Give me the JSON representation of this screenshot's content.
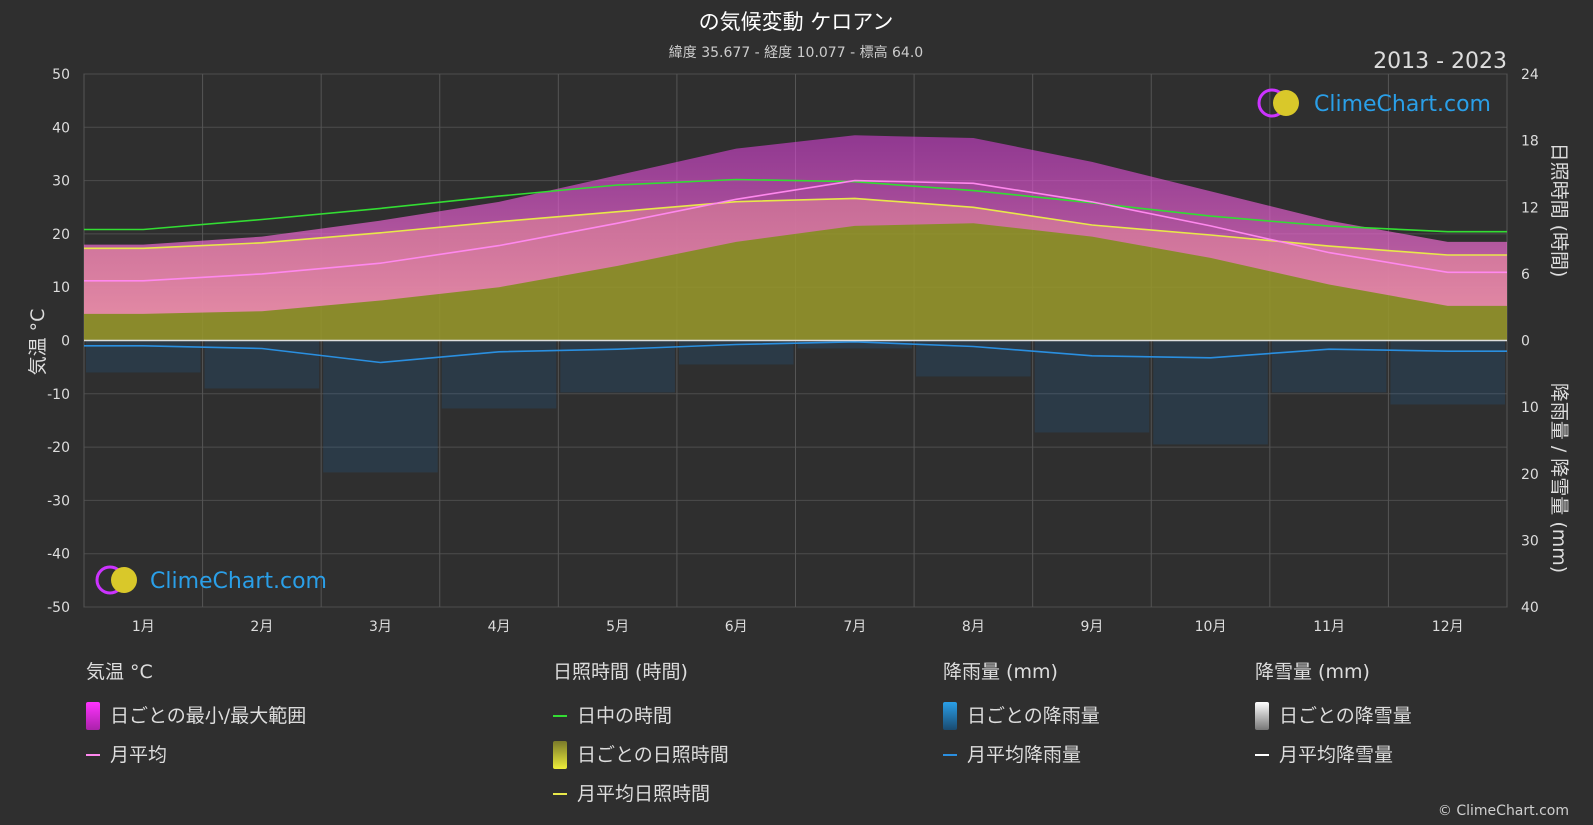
{
  "header": {
    "title": "の気候変動 ケロアン",
    "subtitle": "緯度 35.677 - 経度 10.077 - 標高 64.0",
    "period": "2013 - 2023"
  },
  "logo": {
    "text": "ClimeChart.com"
  },
  "copyright": "© ClimeChart.com",
  "legend": {
    "temperature": {
      "heading": "気温 °C",
      "daily_range": "日ごとの最小/最大範囲",
      "monthly_avg": "月平均"
    },
    "sunshine": {
      "heading": "日照時間 (時間)",
      "daylight": "日中の時間",
      "daily_sunshine": "日ごとの日照時間",
      "monthly_avg_sunshine": "月平均日照時間"
    },
    "rain": {
      "heading": "降雨量 (mm)",
      "daily_rain": "日ごとの降雨量",
      "monthly_avg_rain": "月平均降雨量"
    },
    "snow": {
      "heading": "降雪量 (mm)",
      "daily_snow": "日ごとの降雪量",
      "monthly_avg_snow": "月平均降雪量"
    }
  },
  "colors": {
    "background": "#2f2f2f",
    "temp_range": "#d63fd6",
    "temp_avg": "#ff88ee",
    "daylight": "#33dd33",
    "sunshine_fill": "#9a9a2a",
    "sunshine_line": "#e8e84a",
    "rain": "#1a6fb5",
    "rain_line": "#2a8fe0",
    "snow": "#ffffff",
    "logo_text": "#2a9fe8"
  },
  "chart_data": {
    "type": "area",
    "categories": [
      "1月",
      "2月",
      "3月",
      "4月",
      "5月",
      "6月",
      "7月",
      "8月",
      "9月",
      "10月",
      "11月",
      "12月"
    ],
    "y_left": {
      "label": "気温 °C",
      "ylim": [
        -50,
        50
      ],
      "ticks": [
        50,
        40,
        30,
        20,
        10,
        0,
        -10,
        -20,
        -30,
        -40,
        -50
      ]
    },
    "y_right_top": {
      "label": "日照時間 (時間)",
      "ylim": [
        0,
        24
      ],
      "ticks": [
        24,
        18,
        12,
        6,
        0
      ]
    },
    "y_right_bottom": {
      "label": "降雨量 / 降雪量 (mm)",
      "ylim": [
        0,
        40
      ],
      "ticks": [
        10,
        20,
        30,
        40
      ]
    },
    "grid": true,
    "series": [
      {
        "name": "日中の時間",
        "unit": "h",
        "values": [
          10.0,
          10.9,
          11.9,
          13.0,
          14.0,
          14.5,
          14.3,
          13.5,
          12.4,
          11.2,
          10.3,
          9.8
        ]
      },
      {
        "name": "月平均日照時間",
        "unit": "h",
        "values": [
          8.3,
          8.8,
          9.7,
          10.7,
          11.6,
          12.5,
          12.8,
          12.0,
          10.4,
          9.5,
          8.5,
          7.7
        ]
      },
      {
        "name": "月平均",
        "unit": "°C",
        "values": [
          11.2,
          12.5,
          14.5,
          17.8,
          22.0,
          26.5,
          30.0,
          29.5,
          26.0,
          21.5,
          16.5,
          12.8
        ]
      },
      {
        "name": "日ごとの最小/最大範囲",
        "unit": "°C",
        "min": [
          5.0,
          5.5,
          7.5,
          10.0,
          14.0,
          18.5,
          21.5,
          22.0,
          19.5,
          15.5,
          10.5,
          6.5
        ],
        "max": [
          18.0,
          19.5,
          22.5,
          26.0,
          31.0,
          36.0,
          38.5,
          38.0,
          33.5,
          28.0,
          22.5,
          18.5
        ]
      },
      {
        "name": "月平均降雨量",
        "unit": "mm",
        "values": [
          0.8,
          1.2,
          3.3,
          1.7,
          1.3,
          0.6,
          0.2,
          0.9,
          2.3,
          2.6,
          1.3,
          1.6
        ]
      },
      {
        "name": "月平均降雪量",
        "unit": "mm",
        "values": [
          0,
          0,
          0,
          0,
          0,
          0,
          0,
          0,
          0,
          0,
          0,
          0
        ]
      }
    ]
  }
}
